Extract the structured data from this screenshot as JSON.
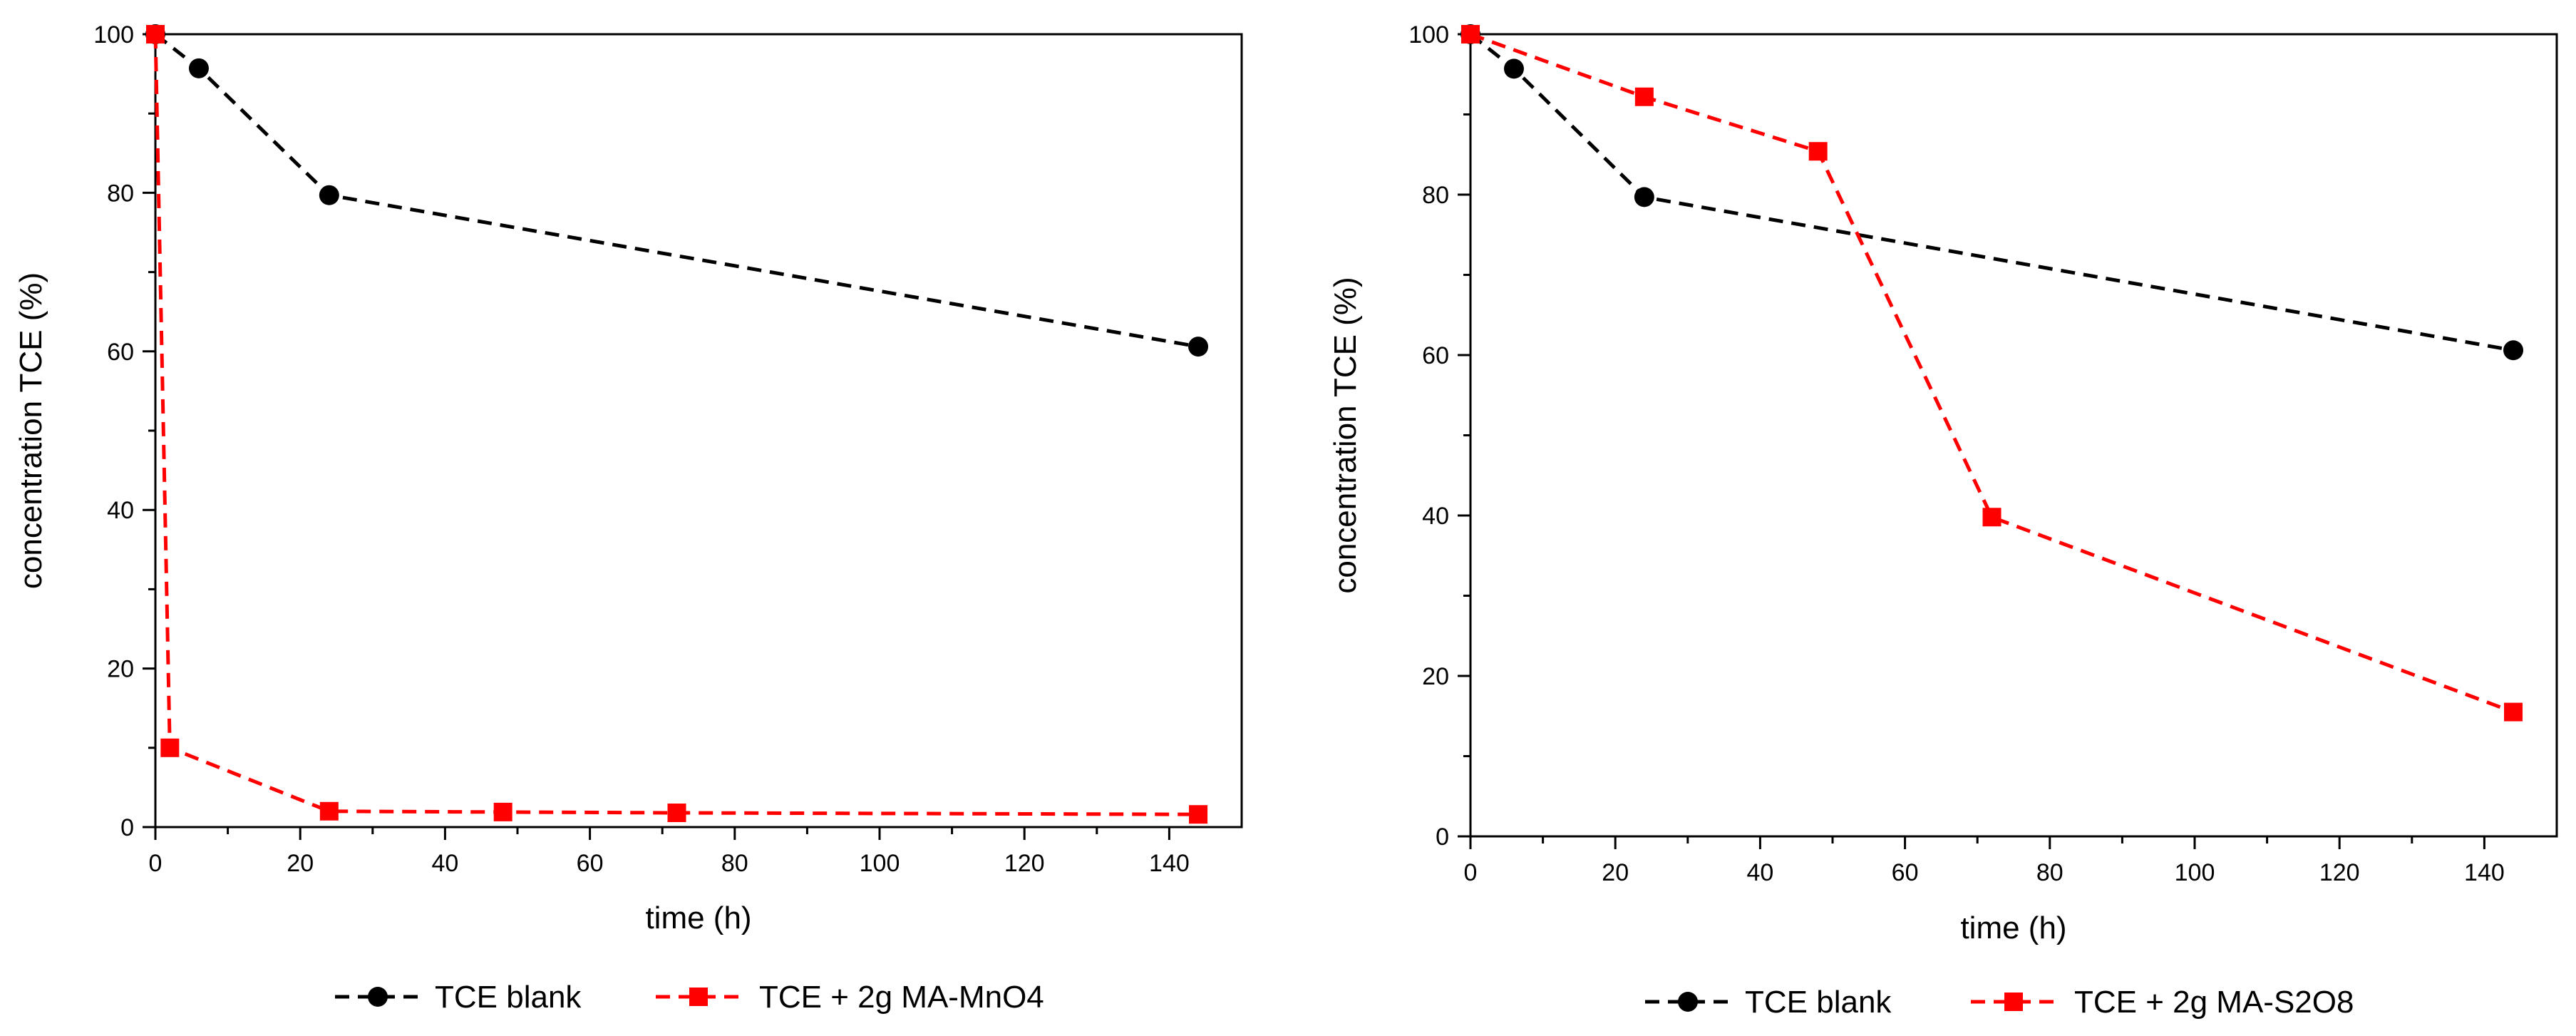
{
  "chart_data": [
    {
      "type": "line",
      "xlabel": "time (h)",
      "ylabel": "concentration TCE (%)",
      "xlim": [
        0,
        150
      ],
      "ylim": [
        0,
        100
      ],
      "xticks": [
        0,
        20,
        40,
        60,
        80,
        100,
        120,
        140
      ],
      "yticks": [
        0,
        20,
        40,
        60,
        80,
        100
      ],
      "xtick_labels": [
        "0",
        "20",
        "40",
        "60",
        "80",
        "100",
        "120",
        "140"
      ],
      "ytick_labels": [
        "0",
        "20",
        "40",
        "60",
        "80",
        "100"
      ],
      "legend_position": "bottom",
      "series": [
        {
          "name": "TCE blank",
          "color": "#000000",
          "marker": "circle",
          "line": "dashed",
          "x": [
            0,
            6,
            24,
            144
          ],
          "y": [
            100,
            95.7,
            79.7,
            60.6
          ]
        },
        {
          "name": "TCE + 2g MA-MnO4",
          "color": "#ff0000",
          "marker": "square",
          "line": "dashed",
          "x": [
            0,
            2,
            24,
            48,
            72,
            144
          ],
          "y": [
            100,
            10,
            2,
            1.9,
            1.8,
            1.6
          ]
        }
      ]
    },
    {
      "type": "line",
      "xlabel": "time (h)",
      "ylabel": "concentration TCE (%)",
      "xlim": [
        0,
        150
      ],
      "ylim": [
        0,
        100
      ],
      "xticks": [
        0,
        20,
        40,
        60,
        80,
        100,
        120,
        140
      ],
      "yticks": [
        0,
        20,
        40,
        60,
        80,
        100
      ],
      "xtick_labels": [
        "0",
        "20",
        "40",
        "60",
        "80",
        "100",
        "120",
        "140"
      ],
      "ytick_labels": [
        "0",
        "20",
        "40",
        "60",
        "80",
        "100"
      ],
      "legend_position": "bottom",
      "series": [
        {
          "name": "TCE blank",
          "color": "#000000",
          "marker": "circle",
          "line": "dashed",
          "x": [
            0,
            6,
            24,
            144
          ],
          "y": [
            100,
            95.7,
            79.7,
            60.6
          ]
        },
        {
          "name": "TCE + 2g MA-S2O8",
          "color": "#ff0000",
          "marker": "square",
          "line": "dashed",
          "x": [
            0,
            24,
            48,
            72,
            144
          ],
          "y": [
            100,
            92.2,
            85.4,
            39.8,
            15.5
          ]
        }
      ]
    }
  ]
}
